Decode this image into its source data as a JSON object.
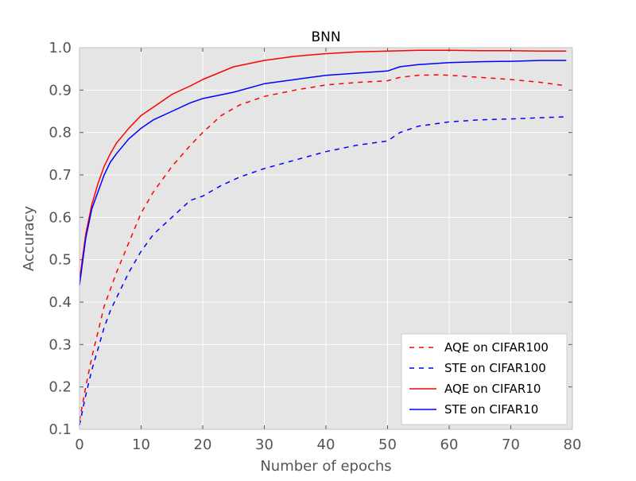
{
  "chart_data": {
    "type": "line",
    "title": "BNN",
    "xlabel": "Number of epochs",
    "ylabel": "Accuracy",
    "xlim": [
      0,
      80
    ],
    "ylim": [
      0.1,
      1.0
    ],
    "grid": true,
    "legend_position": "lower-right",
    "x_ticks": [
      0,
      10,
      20,
      30,
      40,
      50,
      60,
      70,
      80
    ],
    "x_tick_labels": [
      "0",
      "10",
      "20",
      "30",
      "40",
      "50",
      "60",
      "70",
      "80"
    ],
    "y_ticks": [
      0.1,
      0.2,
      0.3,
      0.4,
      0.5,
      0.6,
      0.7,
      0.8,
      0.9,
      1.0
    ],
    "y_tick_labels": [
      "0.1",
      "0.2",
      "0.3",
      "0.4",
      "0.5",
      "0.6",
      "0.7",
      "0.8",
      "0.9",
      "1.0"
    ],
    "colors": {
      "plot_background": "#e5e5e5",
      "grid": "#ffffff",
      "text": "#555555",
      "title": "#000000"
    },
    "series": [
      {
        "name": "AQE on CIFAR100",
        "color": "#ff0000",
        "dash": "dashed",
        "x": [
          0,
          1,
          2,
          3,
          4,
          5,
          6,
          8,
          10,
          12,
          15,
          18,
          20,
          23,
          26,
          30,
          35,
          40,
          45,
          50,
          52,
          55,
          58,
          60,
          65,
          70,
          75,
          79
        ],
        "values": [
          0.12,
          0.2,
          0.27,
          0.33,
          0.39,
          0.43,
          0.47,
          0.54,
          0.61,
          0.66,
          0.72,
          0.77,
          0.8,
          0.84,
          0.865,
          0.885,
          0.9,
          0.912,
          0.918,
          0.922,
          0.93,
          0.935,
          0.936,
          0.935,
          0.93,
          0.925,
          0.918,
          0.91
        ]
      },
      {
        "name": "STE on CIFAR100",
        "color": "#0000ff",
        "dash": "dashed",
        "x": [
          0,
          1,
          2,
          3,
          4,
          5,
          6,
          8,
          10,
          12,
          15,
          18,
          20,
          23,
          26,
          30,
          35,
          40,
          45,
          50,
          52,
          55,
          60,
          65,
          70,
          75,
          79
        ],
        "values": [
          0.11,
          0.18,
          0.24,
          0.29,
          0.34,
          0.38,
          0.41,
          0.47,
          0.52,
          0.56,
          0.6,
          0.64,
          0.65,
          0.675,
          0.695,
          0.715,
          0.735,
          0.755,
          0.77,
          0.78,
          0.8,
          0.815,
          0.825,
          0.83,
          0.832,
          0.835,
          0.837
        ]
      },
      {
        "name": "AQE on CIFAR10",
        "color": "#ff0000",
        "dash": "solid",
        "x": [
          0,
          1,
          2,
          3,
          4,
          5,
          6,
          8,
          10,
          12,
          15,
          18,
          20,
          25,
          30,
          35,
          40,
          45,
          50,
          55,
          60,
          65,
          70,
          75,
          79
        ],
        "values": [
          0.45,
          0.56,
          0.63,
          0.68,
          0.72,
          0.75,
          0.775,
          0.81,
          0.84,
          0.86,
          0.89,
          0.91,
          0.925,
          0.955,
          0.97,
          0.98,
          0.986,
          0.99,
          0.992,
          0.994,
          0.994,
          0.993,
          0.993,
          0.992,
          0.992
        ]
      },
      {
        "name": "STE on CIFAR10",
        "color": "#0000ff",
        "dash": "solid",
        "x": [
          0,
          1,
          2,
          3,
          4,
          5,
          6,
          8,
          10,
          12,
          15,
          18,
          20,
          25,
          30,
          35,
          40,
          45,
          50,
          52,
          55,
          60,
          65,
          70,
          75,
          79
        ],
        "values": [
          0.44,
          0.55,
          0.62,
          0.66,
          0.7,
          0.73,
          0.75,
          0.785,
          0.81,
          0.83,
          0.85,
          0.87,
          0.88,
          0.895,
          0.915,
          0.925,
          0.935,
          0.94,
          0.945,
          0.955,
          0.96,
          0.965,
          0.967,
          0.968,
          0.97,
          0.97
        ]
      }
    ]
  }
}
